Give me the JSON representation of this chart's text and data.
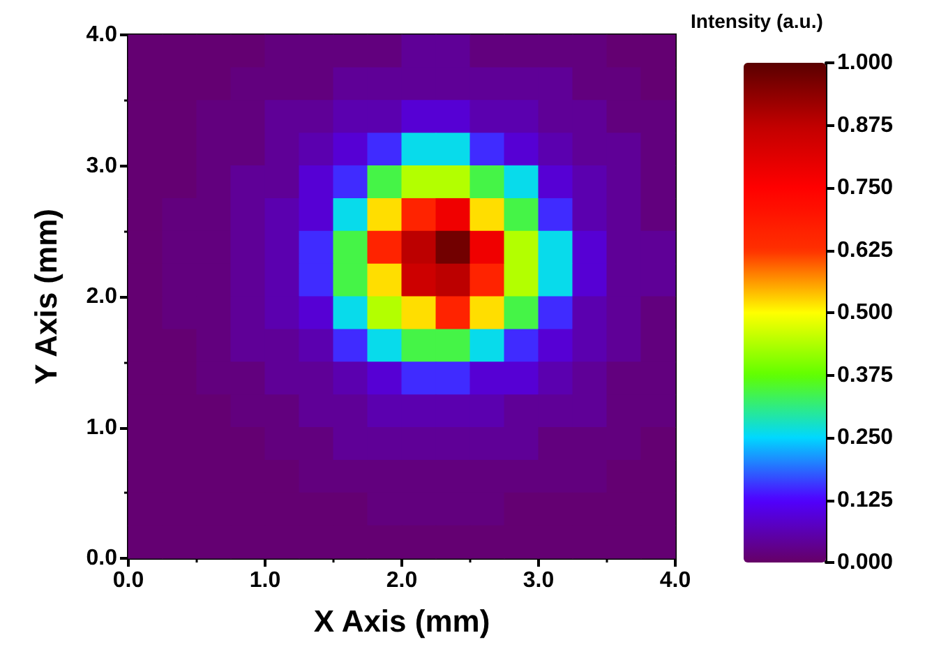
{
  "chart_data": {
    "type": "heatmap",
    "xlabel": "X Axis (mm)",
    "ylabel": "Y Axis (mm)",
    "clabel": "Intensity (a.u.)",
    "xlim": [
      0,
      4
    ],
    "xticks": [
      {
        "value": 0,
        "label": "0.0"
      },
      {
        "value": 1,
        "label": "1.0"
      },
      {
        "value": 2,
        "label": "2.0"
      },
      {
        "value": 3,
        "label": "3.0"
      },
      {
        "value": 4,
        "label": "4.0"
      }
    ],
    "ylim": [
      0,
      4
    ],
    "yticks": [
      {
        "value": 0,
        "label": "0.0"
      },
      {
        "value": 1,
        "label": "1.0"
      },
      {
        "value": 2,
        "label": "2.0"
      },
      {
        "value": 3,
        "label": "3.0"
      },
      {
        "value": 4,
        "label": "4.0"
      }
    ],
    "clim": [
      0,
      1
    ],
    "cticks": [
      {
        "value": 0,
        "label": "0.000"
      },
      {
        "value": 0.125,
        "label": "0.125"
      },
      {
        "value": 0.25,
        "label": "0.250"
      },
      {
        "value": 0.375,
        "label": "0.375"
      },
      {
        "value": 0.5,
        "label": "0.500"
      },
      {
        "value": 0.625,
        "label": "0.625"
      },
      {
        "value": 0.75,
        "label": "0.750"
      },
      {
        "value": 0.875,
        "label": "0.875"
      },
      {
        "value": 1,
        "label": "1.000"
      }
    ],
    "cells": [
      [
        0.01,
        0.01,
        0.01,
        0.01,
        0.02,
        0.02,
        0.02,
        0.02,
        0.04,
        0.04,
        0.02,
        0.02,
        0.02,
        0.02,
        0.01,
        0.01
      ],
      [
        0.01,
        0.01,
        0.01,
        0.02,
        0.02,
        0.02,
        0.04,
        0.04,
        0.04,
        0.04,
        0.04,
        0.04,
        0.04,
        0.02,
        0.02,
        0.01
      ],
      [
        0.01,
        0.01,
        0.02,
        0.02,
        0.04,
        0.04,
        0.06,
        0.06,
        0.09,
        0.09,
        0.06,
        0.06,
        0.04,
        0.04,
        0.02,
        0.02
      ],
      [
        0.01,
        0.01,
        0.02,
        0.02,
        0.04,
        0.06,
        0.09,
        0.15,
        0.26,
        0.26,
        0.15,
        0.09,
        0.06,
        0.04,
        0.04,
        0.02
      ],
      [
        0.01,
        0.01,
        0.02,
        0.04,
        0.04,
        0.09,
        0.15,
        0.34,
        0.44,
        0.44,
        0.34,
        0.26,
        0.09,
        0.06,
        0.04,
        0.02
      ],
      [
        0.01,
        0.02,
        0.02,
        0.04,
        0.06,
        0.09,
        0.26,
        0.52,
        0.66,
        0.78,
        0.52,
        0.34,
        0.15,
        0.06,
        0.04,
        0.02
      ],
      [
        0.01,
        0.02,
        0.02,
        0.04,
        0.06,
        0.15,
        0.34,
        0.66,
        0.88,
        0.97,
        0.78,
        0.44,
        0.26,
        0.09,
        0.04,
        0.04
      ],
      [
        0.01,
        0.02,
        0.02,
        0.04,
        0.06,
        0.15,
        0.34,
        0.52,
        0.85,
        0.88,
        0.66,
        0.44,
        0.26,
        0.09,
        0.04,
        0.04
      ],
      [
        0.01,
        0.02,
        0.02,
        0.04,
        0.06,
        0.09,
        0.26,
        0.44,
        0.52,
        0.66,
        0.52,
        0.34,
        0.15,
        0.06,
        0.04,
        0.02
      ],
      [
        0.01,
        0.01,
        0.02,
        0.04,
        0.04,
        0.06,
        0.15,
        0.26,
        0.34,
        0.34,
        0.26,
        0.15,
        0.09,
        0.06,
        0.04,
        0.02
      ],
      [
        0.01,
        0.01,
        0.02,
        0.02,
        0.04,
        0.04,
        0.06,
        0.09,
        0.15,
        0.15,
        0.09,
        0.09,
        0.06,
        0.04,
        0.02,
        0.02
      ],
      [
        0.01,
        0.01,
        0.01,
        0.02,
        0.02,
        0.04,
        0.04,
        0.06,
        0.06,
        0.06,
        0.06,
        0.04,
        0.04,
        0.04,
        0.02,
        0.02
      ],
      [
        0.01,
        0.01,
        0.01,
        0.01,
        0.02,
        0.02,
        0.04,
        0.04,
        0.04,
        0.04,
        0.04,
        0.04,
        0.02,
        0.02,
        0.02,
        0.01
      ],
      [
        0.01,
        0.01,
        0.01,
        0.01,
        0.01,
        0.02,
        0.02,
        0.02,
        0.02,
        0.02,
        0.02,
        0.02,
        0.02,
        0.02,
        0.01,
        0.01
      ],
      [
        0.01,
        0.01,
        0.01,
        0.01,
        0.01,
        0.01,
        0.01,
        0.02,
        0.02,
        0.02,
        0.02,
        0.01,
        0.01,
        0.01,
        0.01,
        0.01
      ],
      [
        0.01,
        0.01,
        0.01,
        0.01,
        0.01,
        0.01,
        0.01,
        0.01,
        0.01,
        0.01,
        0.01,
        0.01,
        0.01,
        0.01,
        0.01,
        0.01
      ]
    ]
  }
}
